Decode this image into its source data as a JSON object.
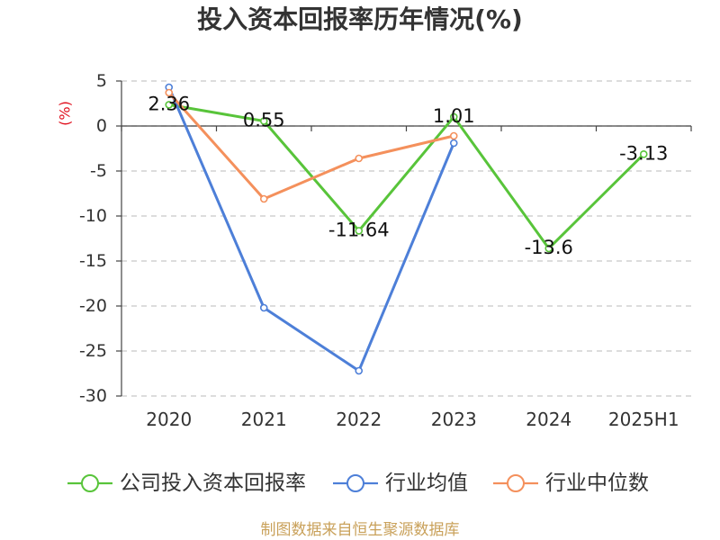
{
  "chart_data": {
    "type": "line",
    "title": "投入资本回报率历年情况(%)",
    "ylabel": "(%)",
    "xlabel": "",
    "categories": [
      "2020",
      "2021",
      "2022",
      "2023",
      "2024",
      "2025H1"
    ],
    "ylim": [
      -30,
      5
    ],
    "yticks": [
      5,
      0,
      -5,
      -10,
      -15,
      -20,
      -25,
      -30
    ],
    "grid": true,
    "legend": "bottom",
    "series": [
      {
        "name": "公司投入资本回报率",
        "color": "#58c43a",
        "show_labels": true,
        "values": [
          2.36,
          0.55,
          -11.64,
          1.01,
          -13.6,
          -3.13
        ]
      },
      {
        "name": "行业均值",
        "color": "#4d7fd8",
        "show_labels": false,
        "values": [
          4.3,
          -20.2,
          -27.2,
          -1.9,
          null,
          null
        ]
      },
      {
        "name": "行业中位数",
        "color": "#f4905c",
        "show_labels": false,
        "values": [
          3.7,
          -8.1,
          -3.6,
          -1.1,
          null,
          null
        ]
      }
    ]
  },
  "footer": "制图数据来自恒生聚源数据库"
}
